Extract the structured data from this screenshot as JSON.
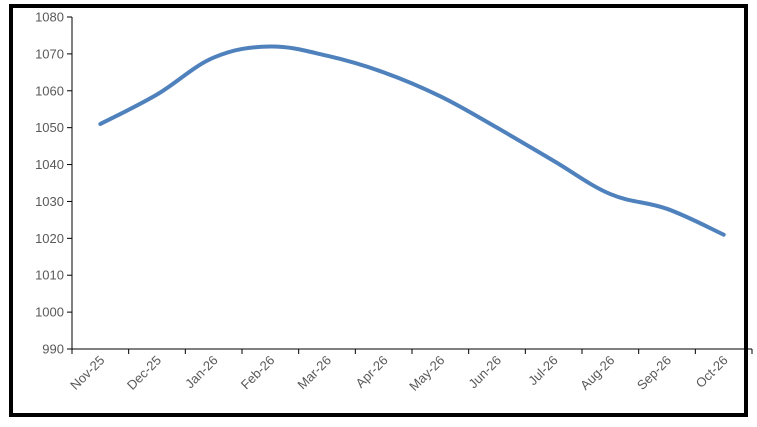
{
  "chart_data": {
    "type": "line",
    "title": "",
    "xlabel": "",
    "ylabel": "",
    "categories": [
      "Nov-25",
      "Dec-25",
      "Jan-26",
      "Feb-26",
      "Mar-26",
      "Apr-26",
      "May-26",
      "Jun-26",
      "Jul-26",
      "Aug-26",
      "Sep-26",
      "Oct-26"
    ],
    "series": [
      {
        "values": [
          1051,
          1059,
          1069,
          1072,
          1069.5,
          1065,
          1058.5,
          1050,
          1041,
          1032,
          1028,
          1021
        ],
        "color": "#4f81bd"
      }
    ],
    "ylim": [
      990,
      1080
    ],
    "yticks": [
      "990",
      "1000",
      "1010",
      "1020",
      "1030",
      "1040",
      "1050",
      "1060",
      "1070",
      "1080"
    ],
    "grid": false,
    "legend": "none"
  }
}
